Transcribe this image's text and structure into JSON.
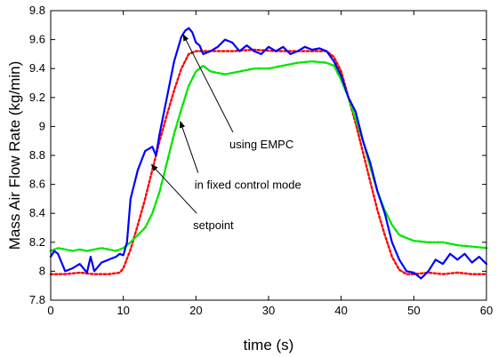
{
  "chart_data": {
    "type": "line",
    "title": "",
    "xlabel": "time (s)",
    "ylabel": "Mass Air Flow Rate (kg/min)",
    "xlim": [
      0,
      60
    ],
    "ylim": [
      7.8,
      9.8
    ],
    "xticks": [
      "0",
      "10",
      "20",
      "30",
      "40",
      "50",
      "60"
    ],
    "yticks": [
      "7.8",
      "8",
      "8.2",
      "8.4",
      "8.6",
      "8.8",
      "9",
      "9.2",
      "9.4",
      "9.6",
      "9.8"
    ],
    "grid": false,
    "legend": "none",
    "series": [
      {
        "key": "setpoint",
        "color": "#ff0000",
        "dash": "dotted",
        "x": [
          0,
          2,
          4,
          6,
          8,
          9.5,
          10,
          11,
          12,
          13,
          14,
          15,
          16,
          17,
          18,
          19,
          20,
          22,
          25,
          28,
          31,
          34,
          36,
          38,
          39,
          40,
          41,
          42,
          43,
          44,
          45,
          46,
          47,
          48,
          49,
          50,
          52,
          54,
          56,
          58,
          60
        ],
        "y": [
          7.98,
          7.98,
          7.99,
          7.98,
          7.98,
          7.99,
          8.02,
          8.15,
          8.32,
          8.5,
          8.7,
          8.9,
          9.08,
          9.25,
          9.4,
          9.5,
          9.52,
          9.52,
          9.52,
          9.53,
          9.52,
          9.52,
          9.52,
          9.52,
          9.48,
          9.38,
          9.2,
          9.02,
          8.82,
          8.62,
          8.42,
          8.25,
          8.1,
          8.01,
          7.98,
          7.98,
          7.99,
          7.98,
          7.99,
          7.98,
          7.98
        ]
      },
      {
        "key": "fixed-control-mode",
        "color": "#00e600",
        "dash": "dashdot",
        "x": [
          0,
          1,
          2,
          3,
          4,
          5,
          6,
          7,
          8,
          9,
          10,
          11,
          12,
          13,
          14,
          15,
          16,
          17,
          18,
          19,
          20,
          21,
          22,
          24,
          26,
          28,
          30,
          32,
          34,
          36,
          38,
          39,
          40,
          41,
          42,
          43,
          44,
          45,
          46,
          47,
          48,
          50,
          52,
          54,
          56,
          58,
          60
        ],
        "y": [
          8.14,
          8.16,
          8.15,
          8.14,
          8.15,
          8.14,
          8.15,
          8.16,
          8.15,
          8.14,
          8.16,
          8.2,
          8.25,
          8.3,
          8.4,
          8.55,
          8.75,
          8.95,
          9.12,
          9.28,
          9.38,
          9.42,
          9.38,
          9.36,
          9.38,
          9.4,
          9.4,
          9.42,
          9.44,
          9.45,
          9.44,
          9.42,
          9.32,
          9.2,
          9.05,
          8.9,
          8.72,
          8.55,
          8.42,
          8.32,
          8.25,
          8.21,
          8.2,
          8.2,
          8.18,
          8.17,
          8.16
        ]
      },
      {
        "key": "using-empc",
        "color": "#0000ff",
        "dash": "solid",
        "x": [
          0,
          0.5,
          1,
          2,
          3,
          4,
          5,
          5.5,
          6,
          7,
          8,
          9,
          9.5,
          10,
          10.5,
          11,
          12,
          13,
          14,
          14.5,
          15,
          16,
          17,
          18,
          18.5,
          19,
          19.5,
          20,
          20.5,
          21,
          22,
          23,
          24,
          25,
          26,
          27,
          28,
          29,
          30,
          31,
          32,
          33,
          34,
          35,
          36,
          37,
          38,
          39,
          40,
          41,
          42,
          43,
          44,
          45,
          46,
          47,
          48,
          49,
          50,
          51,
          52,
          53,
          54,
          55,
          56,
          57,
          58,
          59,
          60
        ],
        "y": [
          8.1,
          8.14,
          8.12,
          8.0,
          8.02,
          8.05,
          7.99,
          8.1,
          8.0,
          8.06,
          8.08,
          8.1,
          8.12,
          8.11,
          8.2,
          8.5,
          8.7,
          8.83,
          8.86,
          8.8,
          8.95,
          9.2,
          9.45,
          9.62,
          9.66,
          9.68,
          9.65,
          9.58,
          9.56,
          9.5,
          9.52,
          9.55,
          9.6,
          9.58,
          9.52,
          9.56,
          9.52,
          9.5,
          9.55,
          9.52,
          9.55,
          9.5,
          9.52,
          9.55,
          9.53,
          9.54,
          9.52,
          9.45,
          9.35,
          9.2,
          9.1,
          8.9,
          8.75,
          8.55,
          8.4,
          8.2,
          8.08,
          8.0,
          7.99,
          7.95,
          8.0,
          8.08,
          8.05,
          8.12,
          8.08,
          8.12,
          8.06,
          8.1,
          8.05
        ]
      }
    ],
    "annotations": [
      {
        "text": "using EMPC",
        "target": [
          18.2,
          9.64
        ],
        "label": [
          25.1,
          8.96
        ]
      },
      {
        "text": "in fixed control mode",
        "target": [
          17.8,
          9.04
        ],
        "label": [
          20.3,
          8.68
        ]
      },
      {
        "text": "setpoint",
        "target": [
          13.8,
          8.74
        ],
        "label": [
          20.1,
          8.4
        ]
      }
    ]
  }
}
